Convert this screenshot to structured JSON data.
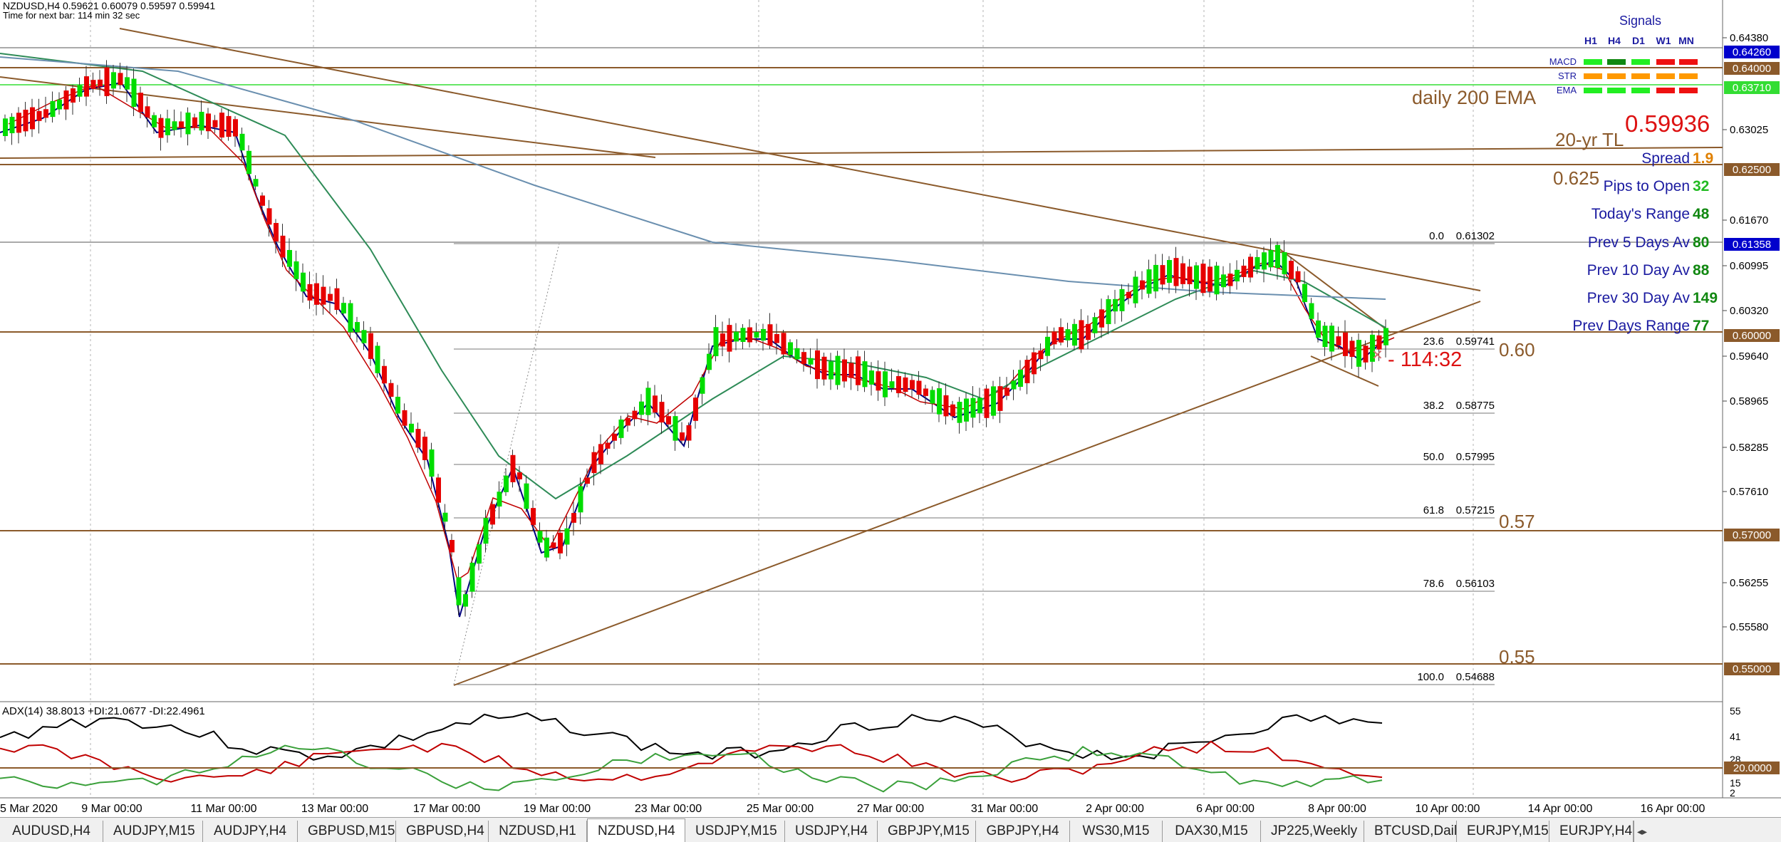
{
  "window": {
    "header_line1": "NZDUSD,H4  0.59621 0.60079 0.59597 0.59941",
    "header_line2": "Time for next bar: 114 min 32 sec"
  },
  "colors": {
    "bull": "#00dd00",
    "bear": "#e60000",
    "trendline": "#8b5a2b",
    "grid": "#b0b0b0",
    "ema_fast": "#000080",
    "ema_mid": "#c00000",
    "ema_slow": "#2e8b57",
    "ema_200": "#6a8faf",
    "adx": "#000000",
    "plus_di": "#c00000",
    "minus_di": "#3aa03a"
  },
  "price_axis": {
    "ticks": [
      "0.64380",
      "0.63025",
      "0.61670",
      "0.60995",
      "0.60320",
      "0.59640",
      "0.58965",
      "0.58285",
      "0.57610",
      "0.56255",
      "0.55580"
    ],
    "markers": [
      {
        "value": "0.64260",
        "bg": "#0000cc",
        "fg": "#ffffff"
      },
      {
        "value": "0.64000",
        "bg": "#8b5a2b",
        "fg": "#ffffff"
      },
      {
        "value": "0.63710",
        "bg": "#33dd33",
        "fg": "#ffffff"
      },
      {
        "value": "0.62500",
        "bg": "#8b5a2b",
        "fg": "#ffffff"
      },
      {
        "value": "0.61358",
        "bg": "#0000cc",
        "fg": "#ffffff"
      },
      {
        "value": "0.60000",
        "bg": "#8b5a2b",
        "fg": "#ffffff"
      },
      {
        "value": "0.57000",
        "bg": "#8b5a2b",
        "fg": "#ffffff"
      },
      {
        "value": "0.55000",
        "bg": "#8b5a2b",
        "fg": "#ffffff"
      }
    ]
  },
  "time_axis": [
    "5 Mar 2020",
    "9 Mar 00:00",
    "11 Mar 00:00",
    "13 Mar 00:00",
    "17 Mar 00:00",
    "19 Mar 00:00",
    "23 Mar 00:00",
    "25 Mar 00:00",
    "27 Mar 00:00",
    "31 Mar 00:00",
    "2 Apr 00:00",
    "6 Apr 00:00",
    "8 Apr 00:00",
    "10 Apr 00:00",
    "14 Apr 00:00",
    "16 Apr 00:00"
  ],
  "fibonacci": [
    {
      "level": "0.0",
      "price": "0.61302"
    },
    {
      "level": "23.6",
      "price": "0.59741"
    },
    {
      "level": "38.2",
      "price": "0.58775"
    },
    {
      "level": "50.0",
      "price": "0.57995"
    },
    {
      "level": "61.8",
      "price": "0.57215"
    },
    {
      "level": "78.6",
      "price": "0.56103"
    },
    {
      "level": "100.0",
      "price": "0.54688"
    }
  ],
  "annotations": {
    "daily_200_ema": "daily 200 EMA",
    "twenty_yr_tl": "20-yr TL",
    "price_big": "0.59936",
    "level_0625": "0.625",
    "level_060": "0.60",
    "level_057": "0.57",
    "level_055": "0.55",
    "countdown": "- 114:32"
  },
  "signals": {
    "title": "Signals",
    "timeframes": [
      "H1",
      "H4",
      "D1",
      "W1",
      "MN"
    ],
    "rows": [
      {
        "name": "MACD",
        "states": [
          "green",
          "darkgreen",
          "green",
          "red",
          "red"
        ]
      },
      {
        "name": "STR",
        "states": [
          "orange",
          "orange",
          "orange",
          "orange",
          "orange"
        ]
      },
      {
        "name": "EMA",
        "states": [
          "green",
          "green",
          "green",
          "red",
          "red"
        ]
      }
    ]
  },
  "stats": [
    {
      "label": "Spread",
      "value": "1.9",
      "value_color": "#e08000"
    },
    {
      "label": "Pips to Open",
      "value": "32",
      "value_color": "#22bb22"
    },
    {
      "label": "Today's Range",
      "value": "48",
      "value_color": "#118811"
    },
    {
      "label": "Prev 5 Days Av",
      "value": "80",
      "value_color": "#118811"
    },
    {
      "label": "Prev 10 Day Av",
      "value": "88",
      "value_color": "#118811"
    },
    {
      "label": "Prev 30 Day Av",
      "value": "149",
      "value_color": "#118811"
    },
    {
      "label": "Prev Days Range",
      "value": "77",
      "value_color": "#118811"
    }
  ],
  "adx_panel": {
    "label": "ADX(14) 38.8013 +DI:21.0677 -DI:22.4961",
    "ticks": [
      "55",
      "41",
      "28",
      "15",
      "2"
    ],
    "marker": "20.0000"
  },
  "tabs": [
    {
      "label": "AUDUSD,H4",
      "active": false
    },
    {
      "label": "AUDJPY,M15",
      "active": false
    },
    {
      "label": "AUDJPY,H4",
      "active": false
    },
    {
      "label": "GBPUSD,M15",
      "active": false
    },
    {
      "label": "GBPUSD,H4",
      "active": false
    },
    {
      "label": "NZDUSD,H1",
      "active": false
    },
    {
      "label": "NZDUSD,H4",
      "active": true
    },
    {
      "label": "USDJPY,M15",
      "active": false
    },
    {
      "label": "USDJPY,H4",
      "active": false
    },
    {
      "label": "GBPJPY,M15",
      "active": false
    },
    {
      "label": "GBPJPY,H4",
      "active": false
    },
    {
      "label": "WS30,M15",
      "active": false
    },
    {
      "label": "DAX30,M15",
      "active": false
    },
    {
      "label": "JP225,Weekly",
      "active": false
    },
    {
      "label": "BTCUSD,Daily",
      "active": false
    },
    {
      "label": "EURJPY,M15",
      "active": false
    },
    {
      "label": "EURJPY,H4",
      "active": false
    }
  ]
}
